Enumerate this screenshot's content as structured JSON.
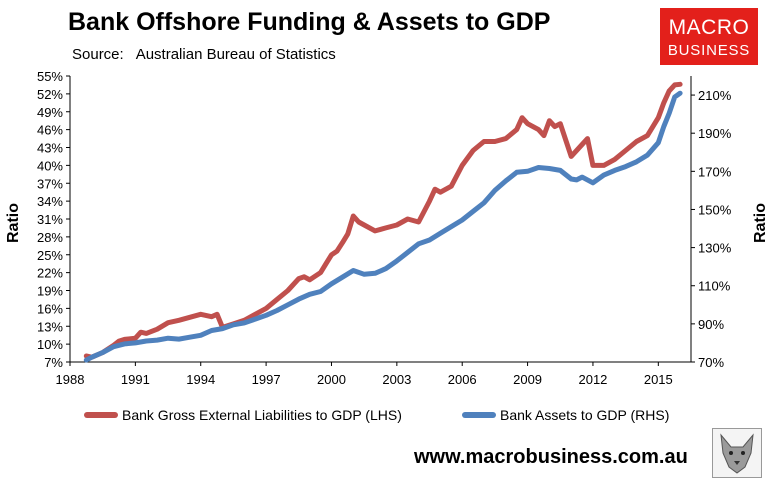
{
  "header": {
    "title": "Bank Offshore Funding & Assets to GDP",
    "source_label": "Source:",
    "source_value": "Australian Bureau of Statistics"
  },
  "logo": {
    "line1": "MACRO",
    "line2": "BUSINESS"
  },
  "footer": {
    "url": "www.macrobusiness.com.au",
    "emblem_icon": "wolf-emblem-icon"
  },
  "colors": {
    "lhs_series": "#c0504d",
    "rhs_series": "#4f81bd",
    "logo_bg": "#e3201b"
  },
  "chart_data": {
    "type": "line",
    "title": "Bank Offshore Funding & Assets to GDP",
    "ylabel": "Ratio",
    "y2label": "Ratio",
    "xlim": [
      1988,
      2016.5
    ],
    "ylim": [
      7,
      55
    ],
    "y2lim": [
      70,
      220
    ],
    "x_ticks": [
      "1988",
      "1991",
      "1994",
      "1997",
      "2000",
      "2003",
      "2006",
      "2009",
      "2012",
      "2015"
    ],
    "y_ticks": [
      "7%",
      "10%",
      "13%",
      "16%",
      "19%",
      "22%",
      "25%",
      "28%",
      "31%",
      "34%",
      "37%",
      "40%",
      "43%",
      "46%",
      "49%",
      "52%",
      "55%"
    ],
    "y2_ticks": [
      "70%",
      "90%",
      "110%",
      "130%",
      "150%",
      "170%",
      "190%",
      "210%"
    ],
    "grid": false,
    "legend_position": "bottom",
    "series": [
      {
        "name": "Bank Gross External Liabilities to GDP (LHS)",
        "axis": "left",
        "color": "#c0504d",
        "x": [
          1988.75,
          1989.0,
          1989.5,
          1990.0,
          1990.25,
          1990.5,
          1991.0,
          1991.25,
          1991.5,
          1992.0,
          1992.5,
          1993.0,
          1993.5,
          1994.0,
          1994.5,
          1994.75,
          1995.0,
          1995.5,
          1996.0,
          1996.5,
          1997.0,
          1997.5,
          1998.0,
          1998.5,
          1998.75,
          1999.0,
          1999.5,
          1999.75,
          2000.0,
          2000.25,
          2000.5,
          2000.75,
          2001.0,
          2001.25,
          2001.5,
          2002.0,
          2002.5,
          2003.0,
          2003.5,
          2004.0,
          2004.5,
          2004.75,
          2005.0,
          2005.5,
          2006.0,
          2006.5,
          2007.0,
          2007.5,
          2008.0,
          2008.5,
          2008.75,
          2009.0,
          2009.5,
          2009.75,
          2010.0,
          2010.25,
          2010.5,
          2011.0,
          2011.5,
          2011.75,
          2012.0,
          2012.5,
          2013.0,
          2013.5,
          2014.0,
          2014.5,
          2015.0,
          2015.25,
          2015.5,
          2015.75,
          2016.0
        ],
        "y": [
          8.0,
          7.8,
          8.6,
          9.8,
          10.5,
          10.8,
          11.0,
          12.0,
          11.8,
          12.5,
          13.6,
          14.0,
          14.5,
          15.0,
          14.6,
          15.0,
          12.8,
          13.4,
          14.0,
          15.0,
          16.0,
          17.5,
          19.0,
          21.0,
          21.3,
          20.8,
          22.0,
          23.5,
          25.0,
          25.6,
          27.0,
          28.5,
          31.5,
          30.5,
          30.0,
          29.0,
          29.5,
          30.0,
          31.0,
          30.5,
          34.0,
          36.0,
          35.5,
          36.5,
          40.0,
          42.5,
          44.0,
          44.0,
          44.5,
          46.0,
          48.0,
          47.0,
          46.0,
          45.0,
          47.5,
          46.5,
          47.0,
          41.5,
          43.5,
          44.5,
          40.0,
          40.0,
          41.0,
          42.5,
          44.0,
          45.0,
          48.0,
          50.5,
          52.5,
          53.5,
          53.6
        ]
      },
      {
        "name": "Bank Assets to GDP (RHS)",
        "axis": "right",
        "color": "#4f81bd",
        "x": [
          1988.75,
          1989.0,
          1989.5,
          1990.0,
          1990.5,
          1991.0,
          1991.5,
          1992.0,
          1992.5,
          1993.0,
          1993.5,
          1994.0,
          1994.5,
          1995.0,
          1995.5,
          1996.0,
          1996.5,
          1997.0,
          1997.5,
          1998.0,
          1998.5,
          1999.0,
          1999.5,
          2000.0,
          2000.5,
          2001.0,
          2001.5,
          2002.0,
          2002.5,
          2003.0,
          2003.5,
          2004.0,
          2004.5,
          2005.0,
          2005.5,
          2006.0,
          2006.5,
          2007.0,
          2007.5,
          2008.0,
          2008.5,
          2009.0,
          2009.5,
          2010.0,
          2010.5,
          2011.0,
          2011.25,
          2011.5,
          2012.0,
          2012.5,
          2013.0,
          2013.5,
          2014.0,
          2014.5,
          2015.0,
          2015.25,
          2015.5,
          2015.75,
          2016.0
        ],
        "y": [
          71.0,
          72.5,
          75.0,
          78.0,
          79.5,
          80.0,
          81.0,
          81.5,
          82.5,
          82.0,
          83.0,
          84.0,
          86.5,
          87.5,
          89.5,
          90.5,
          92.5,
          94.5,
          97.0,
          100.0,
          103.0,
          105.5,
          107.0,
          111.0,
          114.5,
          118.0,
          116.0,
          116.5,
          119.0,
          123.0,
          127.5,
          132.0,
          134.0,
          137.5,
          141.0,
          144.5,
          149.0,
          153.5,
          160.0,
          165.0,
          169.5,
          170.0,
          172.0,
          171.5,
          170.5,
          166.0,
          165.5,
          167.0,
          164.0,
          168.0,
          170.5,
          172.5,
          175.0,
          178.5,
          185.0,
          193.5,
          200.5,
          209.0,
          211.0
        ]
      }
    ]
  }
}
